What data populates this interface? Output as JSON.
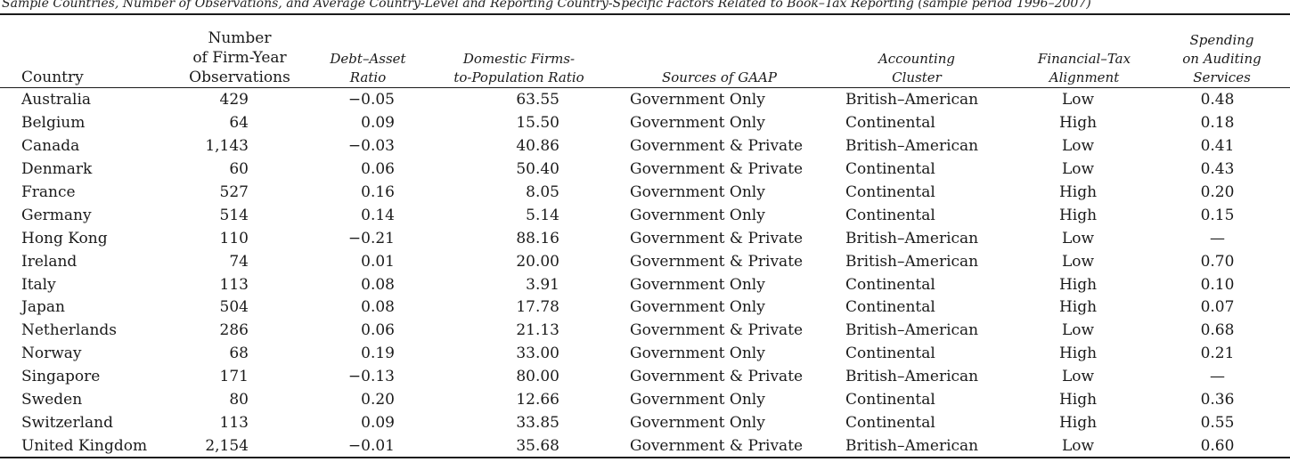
{
  "caption": "Sample Countries, Number of Observations, and Average Country-Level and Reporting Country-Specific Factors Related to Book–Tax Reporting (sample period 1996–2007)",
  "table": {
    "headers": {
      "country": [
        "Country"
      ],
      "observations": [
        "Number",
        "of Firm-Year",
        "Observations"
      ],
      "debt_asset": [
        "Debt–Asset",
        "Ratio"
      ],
      "domestic_firms": [
        "Domestic Firms-",
        "to-Population Ratio"
      ],
      "gaap_sources": [
        "Sources of GAAP"
      ],
      "accounting_cluster": [
        "Accounting",
        "Cluster"
      ],
      "financial_tax": [
        "Financial–Tax",
        "Alignment"
      ],
      "auditing": [
        "Spending",
        "on Auditing",
        "Services"
      ]
    },
    "rows": [
      {
        "country": "Australia",
        "observations": "429",
        "debt_asset": "−0.05",
        "domestic_firms": "63.55",
        "gaap_sources": "Government Only",
        "accounting_cluster": "British–American",
        "financial_tax": "Low",
        "auditing": "0.48"
      },
      {
        "country": "Belgium",
        "observations": "64",
        "debt_asset": "0.09",
        "domestic_firms": "15.50",
        "gaap_sources": "Government Only",
        "accounting_cluster": "Continental",
        "financial_tax": "High",
        "auditing": "0.18"
      },
      {
        "country": "Canada",
        "observations": "1,143",
        "debt_asset": "−0.03",
        "domestic_firms": "40.86",
        "gaap_sources": "Government & Private",
        "accounting_cluster": "British–American",
        "financial_tax": "Low",
        "auditing": "0.41"
      },
      {
        "country": "Denmark",
        "observations": "60",
        "debt_asset": "0.06",
        "domestic_firms": "50.40",
        "gaap_sources": "Government & Private",
        "accounting_cluster": "Continental",
        "financial_tax": "Low",
        "auditing": "0.43"
      },
      {
        "country": "France",
        "observations": "527",
        "debt_asset": "0.16",
        "domestic_firms": "8.05",
        "gaap_sources": "Government Only",
        "accounting_cluster": "Continental",
        "financial_tax": "High",
        "auditing": "0.20"
      },
      {
        "country": "Germany",
        "observations": "514",
        "debt_asset": "0.14",
        "domestic_firms": "5.14",
        "gaap_sources": "Government Only",
        "accounting_cluster": "Continental",
        "financial_tax": "High",
        "auditing": "0.15"
      },
      {
        "country": "Hong Kong",
        "observations": "110",
        "debt_asset": "−0.21",
        "domestic_firms": "88.16",
        "gaap_sources": "Government & Private",
        "accounting_cluster": "British–American",
        "financial_tax": "Low",
        "auditing": "—"
      },
      {
        "country": "Ireland",
        "observations": "74",
        "debt_asset": "0.01",
        "domestic_firms": "20.00",
        "gaap_sources": "Government & Private",
        "accounting_cluster": "British–American",
        "financial_tax": "Low",
        "auditing": "0.70"
      },
      {
        "country": "Italy",
        "observations": "113",
        "debt_asset": "0.08",
        "domestic_firms": "3.91",
        "gaap_sources": "Government Only",
        "accounting_cluster": "Continental",
        "financial_tax": "High",
        "auditing": "0.10"
      },
      {
        "country": "Japan",
        "observations": "504",
        "debt_asset": "0.08",
        "domestic_firms": "17.78",
        "gaap_sources": "Government Only",
        "accounting_cluster": "Continental",
        "financial_tax": "High",
        "auditing": "0.07"
      },
      {
        "country": "Netherlands",
        "observations": "286",
        "debt_asset": "0.06",
        "domestic_firms": "21.13",
        "gaap_sources": "Government & Private",
        "accounting_cluster": "British–American",
        "financial_tax": "Low",
        "auditing": "0.68"
      },
      {
        "country": "Norway",
        "observations": "68",
        "debt_asset": "0.19",
        "domestic_firms": "33.00",
        "gaap_sources": "Government Only",
        "accounting_cluster": "Continental",
        "financial_tax": "High",
        "auditing": "0.21"
      },
      {
        "country": "Singapore",
        "observations": "171",
        "debt_asset": "−0.13",
        "domestic_firms": "80.00",
        "gaap_sources": "Government & Private",
        "accounting_cluster": "British–American",
        "financial_tax": "Low",
        "auditing": "—"
      },
      {
        "country": "Sweden",
        "observations": "80",
        "debt_asset": "0.20",
        "domestic_firms": "12.66",
        "gaap_sources": "Government Only",
        "accounting_cluster": "Continental",
        "financial_tax": "High",
        "auditing": "0.36"
      },
      {
        "country": "Switzerland",
        "observations": "113",
        "debt_asset": "0.09",
        "domestic_firms": "33.85",
        "gaap_sources": "Government Only",
        "accounting_cluster": "Continental",
        "financial_tax": "High",
        "auditing": "0.55"
      },
      {
        "country": "United Kingdom",
        "observations": "2,154",
        "debt_asset": "−0.01",
        "domestic_firms": "35.68",
        "gaap_sources": "Government & Private",
        "accounting_cluster": "British–American",
        "financial_tax": "Low",
        "auditing": "0.60"
      }
    ]
  }
}
